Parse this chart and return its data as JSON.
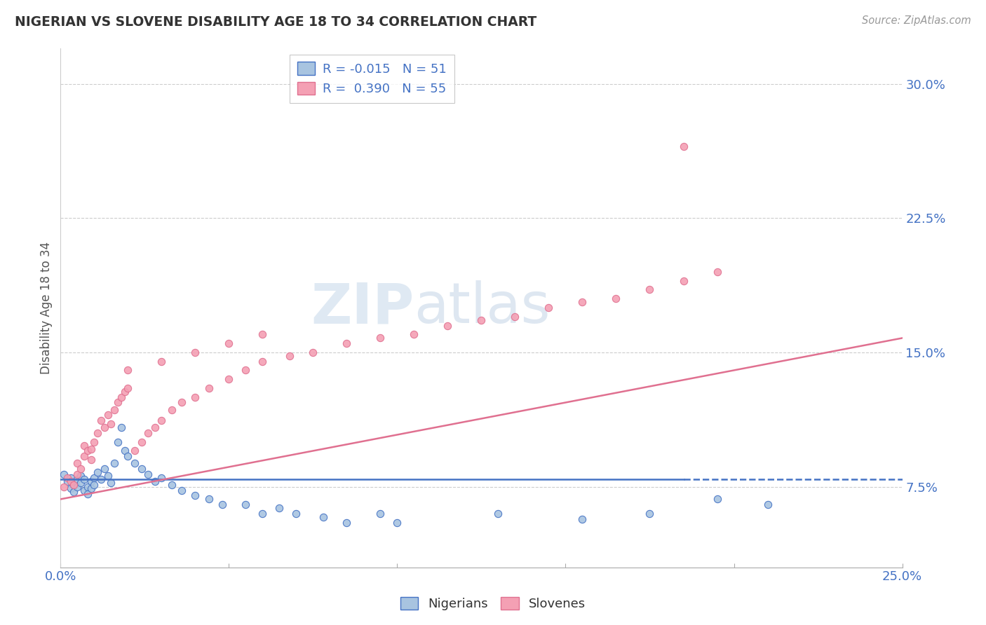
{
  "title": "NIGERIAN VS SLOVENE DISABILITY AGE 18 TO 34 CORRELATION CHART",
  "source": "Source: ZipAtlas.com",
  "ylabel": "Disability Age 18 to 34",
  "xlim": [
    0.0,
    0.25
  ],
  "ylim": [
    0.03,
    0.32
  ],
  "yticks": [
    0.075,
    0.15,
    0.225,
    0.3
  ],
  "ytick_labels": [
    "7.5%",
    "15.0%",
    "22.5%",
    "30.0%"
  ],
  "xticks": [
    0.0,
    0.05,
    0.1,
    0.15,
    0.2,
    0.25
  ],
  "xtick_labels": [
    "0.0%",
    "",
    "",
    "",
    "",
    "25.0%"
  ],
  "nigerian_R": -0.015,
  "nigerian_N": 51,
  "slovene_R": 0.39,
  "slovene_N": 55,
  "nigerian_color": "#a8c4e0",
  "slovene_color": "#f4a0b4",
  "nigerian_line_color": "#4472c4",
  "slovene_line_color": "#e07090",
  "background_color": "#ffffff",
  "watermark_zip": "ZIP",
  "watermark_atlas": "atlas",
  "nigerian_x": [
    0.001,
    0.002,
    0.003,
    0.003,
    0.004,
    0.004,
    0.005,
    0.005,
    0.006,
    0.006,
    0.007,
    0.007,
    0.008,
    0.008,
    0.009,
    0.009,
    0.01,
    0.01,
    0.011,
    0.012,
    0.013,
    0.014,
    0.015,
    0.016,
    0.017,
    0.018,
    0.019,
    0.02,
    0.022,
    0.024,
    0.026,
    0.028,
    0.03,
    0.033,
    0.036,
    0.04,
    0.044,
    0.048,
    0.055,
    0.06,
    0.065,
    0.07,
    0.078,
    0.085,
    0.095,
    0.1,
    0.13,
    0.155,
    0.175,
    0.195,
    0.21
  ],
  "nigerian_y": [
    0.082,
    0.078,
    0.074,
    0.08,
    0.076,
    0.072,
    0.079,
    0.075,
    0.081,
    0.077,
    0.073,
    0.079,
    0.075,
    0.071,
    0.078,
    0.074,
    0.08,
    0.076,
    0.083,
    0.079,
    0.085,
    0.081,
    0.077,
    0.088,
    0.1,
    0.108,
    0.095,
    0.092,
    0.088,
    0.085,
    0.082,
    0.078,
    0.08,
    0.076,
    0.073,
    0.07,
    0.068,
    0.065,
    0.065,
    0.06,
    0.063,
    0.06,
    0.058,
    0.055,
    0.06,
    0.055,
    0.06,
    0.057,
    0.06,
    0.068,
    0.065
  ],
  "slovene_x": [
    0.001,
    0.002,
    0.003,
    0.004,
    0.005,
    0.005,
    0.006,
    0.007,
    0.007,
    0.008,
    0.009,
    0.009,
    0.01,
    0.011,
    0.012,
    0.013,
    0.014,
    0.015,
    0.016,
    0.017,
    0.018,
    0.019,
    0.02,
    0.022,
    0.024,
    0.026,
    0.028,
    0.03,
    0.033,
    0.036,
    0.04,
    0.044,
    0.05,
    0.055,
    0.06,
    0.068,
    0.075,
    0.085,
    0.095,
    0.105,
    0.115,
    0.125,
    0.135,
    0.145,
    0.155,
    0.165,
    0.175,
    0.185,
    0.195,
    0.02,
    0.03,
    0.04,
    0.05,
    0.06,
    0.185
  ],
  "slovene_y": [
    0.075,
    0.08,
    0.078,
    0.076,
    0.082,
    0.088,
    0.085,
    0.092,
    0.098,
    0.095,
    0.09,
    0.096,
    0.1,
    0.105,
    0.112,
    0.108,
    0.115,
    0.11,
    0.118,
    0.122,
    0.125,
    0.128,
    0.13,
    0.095,
    0.1,
    0.105,
    0.108,
    0.112,
    0.118,
    0.122,
    0.125,
    0.13,
    0.135,
    0.14,
    0.145,
    0.148,
    0.15,
    0.155,
    0.158,
    0.16,
    0.165,
    0.168,
    0.17,
    0.175,
    0.178,
    0.18,
    0.185,
    0.19,
    0.195,
    0.14,
    0.145,
    0.15,
    0.155,
    0.16,
    0.265
  ],
  "nigerian_line_y0": 0.079,
  "nigerian_line_y1": 0.079,
  "slovene_line_y0": 0.068,
  "slovene_line_y1": 0.158
}
